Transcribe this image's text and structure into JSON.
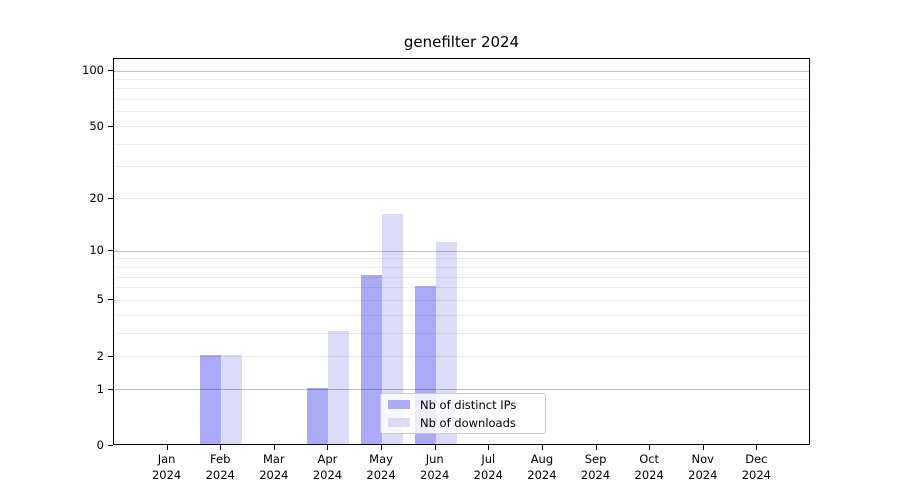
{
  "chart_data": {
    "type": "bar",
    "title": "genefilter 2024",
    "categories": [
      "Jan",
      "Feb",
      "Mar",
      "Apr",
      "May",
      "Jun",
      "Jul",
      "Aug",
      "Sep",
      "Oct",
      "Nov",
      "Dec"
    ],
    "year": "2024",
    "series": [
      {
        "name": "Nb of distinct IPs",
        "color": "#aaaaf6",
        "values": [
          0,
          2,
          0,
          1,
          7,
          6,
          0,
          0,
          0,
          0,
          0,
          0
        ]
      },
      {
        "name": "Nb of downloads",
        "color": "#dcdcf9",
        "values": [
          0,
          2,
          0,
          3,
          16,
          11,
          0,
          0,
          0,
          0,
          0,
          0
        ]
      }
    ],
    "y_axis": {
      "scale": "log1p",
      "labeled_ticks": [
        0,
        1,
        2,
        5,
        10,
        20,
        50,
        100
      ],
      "major_gridlines": [
        1,
        10,
        100
      ],
      "minor_gridlines": [
        2,
        3,
        4,
        5,
        6,
        7,
        8,
        9,
        20,
        30,
        40,
        50,
        60,
        70,
        80,
        90
      ],
      "ylim": [
        0,
        116
      ]
    },
    "xlabel": "",
    "ylabel": "",
    "grid": true,
    "legend_position": "lower center"
  }
}
